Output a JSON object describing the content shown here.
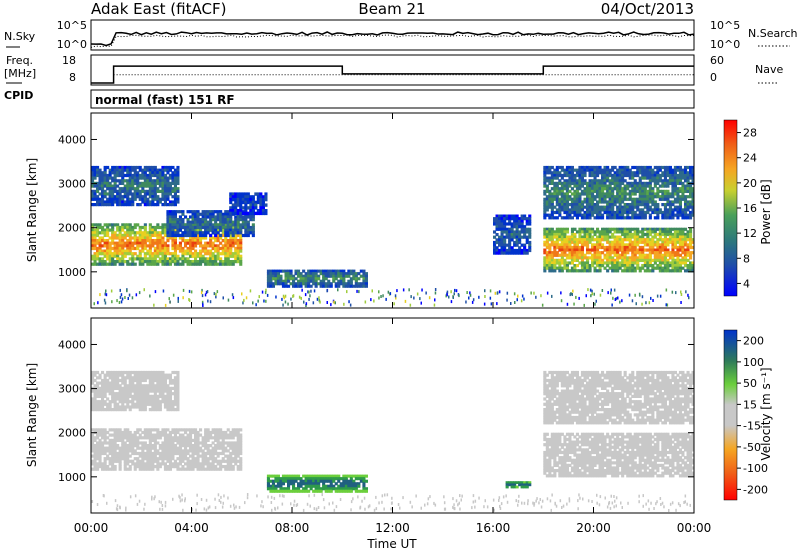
{
  "header": {
    "station": "Adak East (fitACF)",
    "beam": "Beam 21",
    "date": "04/Oct/2013"
  },
  "noise_panel": {
    "left_label": "N.Sky",
    "right_label": "N.Search",
    "left_ticks": [
      "10^5",
      "10^0"
    ],
    "right_ticks": [
      "10^5",
      "10^0"
    ]
  },
  "freq_panel": {
    "left_label_line1": "Freq.",
    "left_label_line2": "[MHz]",
    "right_label": "Nave",
    "left_ticks": [
      "18",
      "8"
    ],
    "right_ticks": [
      "60",
      "0"
    ],
    "freq_mhz": [
      {
        "start_h": 0,
        "end_h": 0.9,
        "value": 8
      },
      {
        "start_h": 0.9,
        "end_h": 10.0,
        "value": 14.5
      },
      {
        "start_h": 10.0,
        "end_h": 18.0,
        "value": 11.5
      },
      {
        "start_h": 18.0,
        "end_h": 24.0,
        "value": 14.5
      }
    ],
    "nave_level": 22
  },
  "cpid": {
    "label": "CPID",
    "mode": "normal (fast) 151 RF"
  },
  "x_axis": {
    "label": "Time UT",
    "ticks": [
      "00:00",
      "04:00",
      "08:00",
      "12:00",
      "16:00",
      "20:00",
      "00:00"
    ],
    "range_h": [
      0,
      24
    ]
  },
  "chart_data": [
    {
      "type": "heatmap",
      "parameter": "Power",
      "ylabel": "Slant Range [km]",
      "yticks": [
        "1000",
        "2000",
        "3000",
        "4000"
      ],
      "ylim_km": [
        180,
        4600
      ],
      "colorbar_label": "Power [dB]",
      "colorbar_ticks": [
        "28",
        "24",
        "20",
        "16",
        "12",
        "8",
        "4"
      ],
      "colorbar_colors": [
        "#0000ff",
        "#0033cc",
        "#1f4fa8",
        "#2e6b8a",
        "#3f8a5e",
        "#5aa64a",
        "#a0cc3c",
        "#e8d020",
        "#f5a623",
        "#f07818",
        "#e84010",
        "#ff0000"
      ],
      "range_db": [
        0,
        32
      ],
      "echo_regions": [
        {
          "t0": 0.0,
          "t1": 6.0,
          "r0": 1150,
          "r1": 2100,
          "level": 26,
          "note": "strong F-region band"
        },
        {
          "t0": 0.0,
          "t1": 3.5,
          "r0": 2500,
          "r1": 3400,
          "level": 10
        },
        {
          "t0": 3.0,
          "t1": 6.5,
          "r0": 1800,
          "r1": 2400,
          "level": 10
        },
        {
          "t0": 5.5,
          "t1": 7.0,
          "r0": 2300,
          "r1": 2800,
          "level": 6
        },
        {
          "t0": 7.0,
          "t1": 11.0,
          "r0": 650,
          "r1": 1050,
          "level": 12
        },
        {
          "t0": 16.0,
          "t1": 17.5,
          "r0": 1400,
          "r1": 2300,
          "level": 8
        },
        {
          "t0": 18.0,
          "t1": 24.0,
          "r0": 1000,
          "r1": 2000,
          "level": 26
        },
        {
          "t0": 18.0,
          "t1": 24.0,
          "r0": 2200,
          "r1": 3400,
          "level": 12
        }
      ]
    },
    {
      "type": "heatmap",
      "parameter": "Velocity",
      "ylabel": "Slant Range [km]",
      "yticks": [
        "1000",
        "2000",
        "3000",
        "4000"
      ],
      "ylim_km": [
        180,
        4600
      ],
      "colorbar_label": "Velocity [m s⁻¹]",
      "colorbar_ticks": [
        "200",
        "100",
        "50",
        "15",
        "-15",
        "-50",
        "-100",
        "-200"
      ],
      "colorbar_colors": [
        "#ff0000",
        "#e82010",
        "#f06018",
        "#f5a623",
        "#e8d45a",
        "#c8c8c8",
        "#c8c8c8",
        "#6ccf3c",
        "#2e9a4a",
        "#206080",
        "#1f3fa0",
        "#0033cc"
      ],
      "range_ms": [
        -250,
        250
      ],
      "echo_regions": [
        {
          "t0": 0.0,
          "t1": 6.0,
          "r0": 1150,
          "r1": 2100,
          "level": 0,
          "note": "ground scatter (grey)"
        },
        {
          "t0": 0.0,
          "t1": 3.5,
          "r0": 2500,
          "r1": 3400,
          "level": 0
        },
        {
          "t0": 7.0,
          "t1": 11.0,
          "r0": 650,
          "r1": 1050,
          "level": 60
        },
        {
          "t0": 16.5,
          "t1": 17.5,
          "r0": 750,
          "r1": 900,
          "level": 60
        },
        {
          "t0": 18.0,
          "t1": 24.0,
          "r0": 1000,
          "r1": 2000,
          "level": 0
        },
        {
          "t0": 18.0,
          "t1": 24.0,
          "r0": 2200,
          "r1": 3400,
          "level": 0
        }
      ]
    }
  ]
}
